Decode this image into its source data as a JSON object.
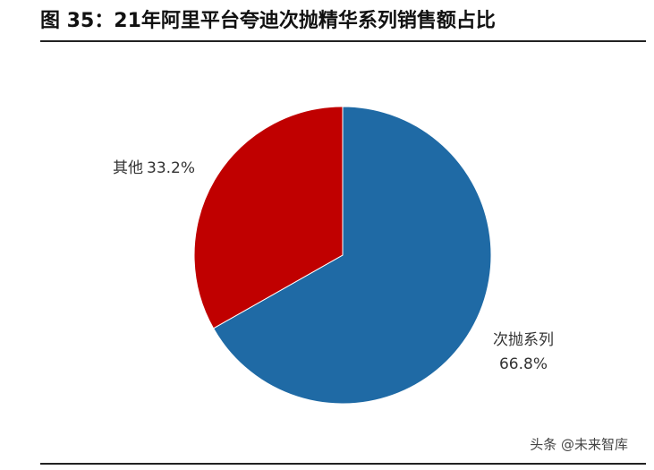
{
  "chart_data": {
    "type": "pie",
    "title": "图 35：21年阿里平台夸迪次抛精华系列销售额占比",
    "categories": [
      "次抛系列",
      "其他"
    ],
    "values": [
      66.8,
      33.2
    ],
    "value_labels": [
      "66.8%",
      "33.2%"
    ],
    "colors": [
      "#1f6aa5",
      "#c00000"
    ],
    "watermark": "头条 @未来智库"
  }
}
